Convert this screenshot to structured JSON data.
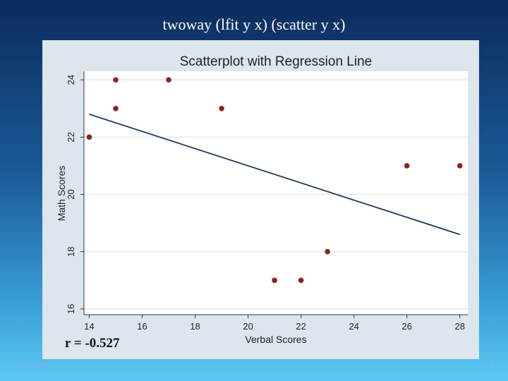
{
  "slide": {
    "title": "twoway (lfit y x) (scatter y x)",
    "footer_date": "1/16/2022",
    "page_number": "6"
  },
  "colors": {
    "panel_bg": "#dde5ed",
    "plot_bg": "#ffffff",
    "point": "#8b2222",
    "line": "#1f3b5a",
    "grid": "#e2e8ee"
  },
  "chart_data": {
    "type": "scatter",
    "title": "Scatterplot with Regression Line",
    "xlabel": "Verbal Scores",
    "ylabel": "Math Scores",
    "xlim": [
      13.8,
      28.3
    ],
    "ylim": [
      15.8,
      24.3
    ],
    "xticks": [
      14,
      16,
      18,
      20,
      22,
      24,
      26,
      28
    ],
    "yticks": [
      16,
      18,
      20,
      22,
      24
    ],
    "grid": true,
    "points": [
      {
        "x": 14,
        "y": 22
      },
      {
        "x": 15,
        "y": 24
      },
      {
        "x": 15,
        "y": 23
      },
      {
        "x": 17,
        "y": 24
      },
      {
        "x": 19,
        "y": 23
      },
      {
        "x": 21,
        "y": 17
      },
      {
        "x": 22,
        "y": 17
      },
      {
        "x": 23,
        "y": 18
      },
      {
        "x": 26,
        "y": 21
      },
      {
        "x": 28,
        "y": 21
      }
    ],
    "fit_line": {
      "x": [
        14,
        28
      ],
      "y": [
        22.8,
        18.6
      ]
    },
    "annotation": "r = -0.527"
  }
}
